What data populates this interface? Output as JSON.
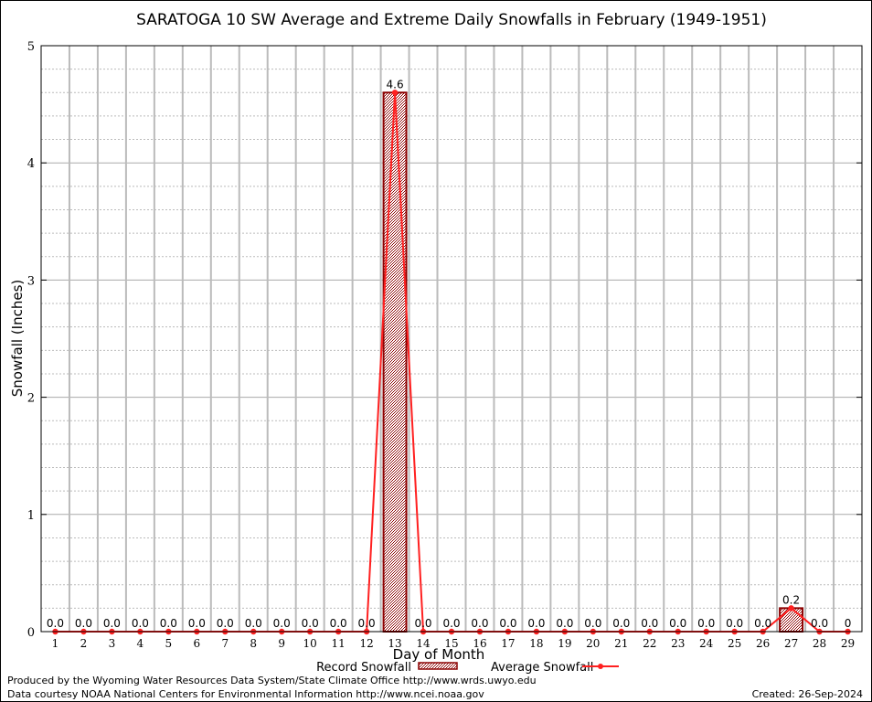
{
  "chart_data": {
    "type": "bar",
    "title": "SARATOGA 10 SW Average and Extreme Daily Snowfalls in February (1949-1951)",
    "xlabel": "Day of Month",
    "ylabel": "Snowfall (Inches)",
    "ylim": [
      0,
      5
    ],
    "yticks": [
      "0",
      "1",
      "2",
      "3",
      "4",
      "5"
    ],
    "grid": true,
    "legend_position": "bottom",
    "categories": [
      "1",
      "2",
      "3",
      "4",
      "5",
      "6",
      "7",
      "8",
      "9",
      "10",
      "11",
      "12",
      "13",
      "14",
      "15",
      "16",
      "17",
      "18",
      "19",
      "20",
      "21",
      "22",
      "23",
      "24",
      "25",
      "26",
      "27",
      "28",
      "29"
    ],
    "series": [
      {
        "name": "Record Snowfall",
        "type": "bar",
        "color": "#8b0000",
        "values": [
          0,
          0,
          0,
          0,
          0,
          0,
          0,
          0,
          0,
          0,
          0,
          0,
          4.6,
          0,
          0,
          0,
          0,
          0,
          0,
          0,
          0,
          0,
          0,
          0,
          0,
          0,
          0.2,
          0,
          0
        ]
      },
      {
        "name": "Average Snowfall",
        "type": "line",
        "color": "#ff2020",
        "values": [
          0,
          0,
          0,
          0,
          0,
          0,
          0,
          0,
          0,
          0,
          0,
          0,
          4.6,
          0,
          0,
          0,
          0,
          0,
          0,
          0,
          0,
          0,
          0,
          0,
          0,
          0,
          0.2,
          0,
          0
        ]
      }
    ],
    "data_labels": [
      "0.0",
      "0.0",
      "0.0",
      "0.0",
      "0.0",
      "0.0",
      "0.0",
      "0.0",
      "0.0",
      "0.0",
      "0.0",
      "0.0",
      "4.6",
      "0.0",
      "0.0",
      "0.0",
      "0.0",
      "0.0",
      "0.0",
      "0.0",
      "0.0",
      "0.0",
      "0.0",
      "0.0",
      "0.0",
      "0.0",
      "0.2",
      "0.0",
      "0"
    ]
  },
  "footer": {
    "produced_by": "Produced by the Wyoming Water Resources Data System/State Climate Office http://www.wrds.uwyo.edu",
    "courtesy": "Data courtesy NOAA National Centers for Environmental Information http://www.ncei.noaa.gov",
    "created": "Created: 26-Sep-2024"
  }
}
